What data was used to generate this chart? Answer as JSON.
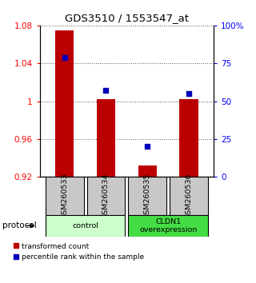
{
  "title": "GDS3510 / 1553547_at",
  "samples": [
    "GSM260533",
    "GSM260534",
    "GSM260535",
    "GSM260536"
  ],
  "bar_values": [
    1.075,
    1.002,
    0.932,
    1.002
  ],
  "percentile_values": [
    79,
    57,
    20,
    55
  ],
  "ylim_left": [
    0.92,
    1.08
  ],
  "ylim_right": [
    0,
    100
  ],
  "yticks_left": [
    0.92,
    0.96,
    1.0,
    1.04,
    1.08
  ],
  "ytick_labels_left": [
    "0.92",
    "0.96",
    "1",
    "1.04",
    "1.08"
  ],
  "yticks_right": [
    0,
    25,
    50,
    75,
    100
  ],
  "ytick_labels_right": [
    "0",
    "25",
    "50",
    "75",
    "100%"
  ],
  "bar_color": "#bb0000",
  "square_color": "#0000bb",
  "bar_width": 0.45,
  "groups": [
    {
      "label": "control",
      "samples": [
        0,
        1
      ],
      "color": "#ccffcc"
    },
    {
      "label": "CLDN1\noverexpression",
      "samples": [
        2,
        3
      ],
      "color": "#44dd44"
    }
  ],
  "protocol_label": "protocol",
  "legend_bar_label": "transformed count",
  "legend_square_label": "percentile rank within the sample",
  "grid_color": "#555555",
  "sample_box_color": "#c8c8c8"
}
